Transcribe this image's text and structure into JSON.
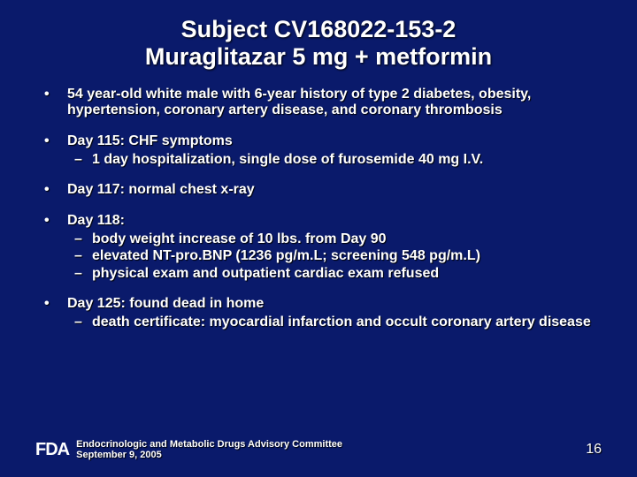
{
  "background_color": "#0a1a6b",
  "text_color": "#ffffff",
  "title_fontsize": 27,
  "body_fontsize": 16,
  "footer_fontsize": 11,
  "title_line1": "Subject CV168022-153-2",
  "title_line2": "Muraglitazar 5 mg + metformin",
  "bullets": {
    "b1": "54 year-old white male with 6-year history of type 2 diabetes, obesity, hypertension, coronary artery disease, and coronary thrombosis",
    "b2": "Day 115:  CHF symptoms",
    "b2_sub1": "1 day hospitalization, single dose of furosemide 40 mg I.V.",
    "b3": "Day 117: normal chest x-ray",
    "b4": "Day 118:",
    "b4_sub1": "body weight increase of 10 lbs. from Day 90",
    "b4_sub2": "elevated NT-pro.BNP (1236 pg/m.L; screening 548 pg/m.L)",
    "b4_sub3": "physical exam and outpatient cardiac exam refused",
    "b5": "Day 125: found dead in home",
    "b5_sub1": "death certificate: myocardial infarction and occult coronary artery disease"
  },
  "footer": {
    "logo_text": "FDA",
    "committee": "Endocrinologic and Metabolic Drugs Advisory Committee",
    "date": "September 9, 2005",
    "page": "16"
  }
}
